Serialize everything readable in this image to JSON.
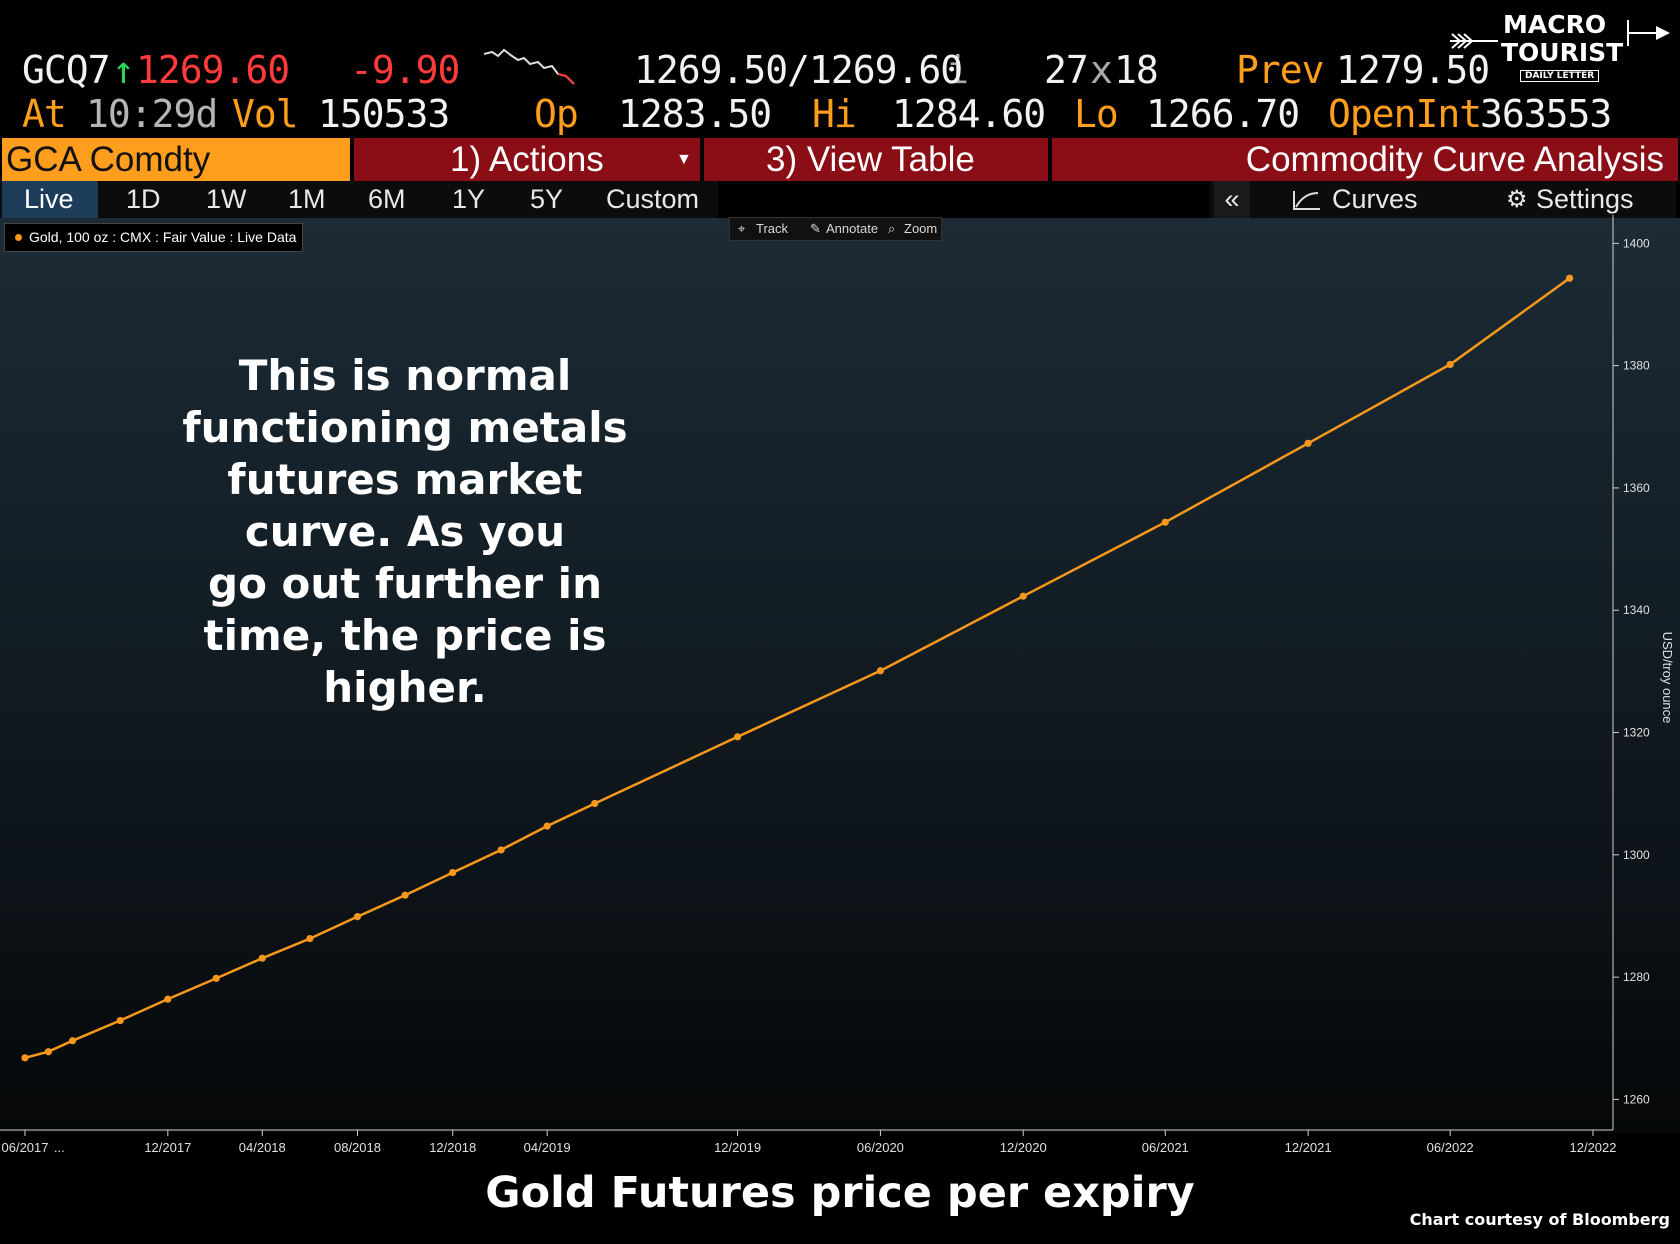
{
  "quote": {
    "ticker": "GCQ7",
    "last": "1269.60",
    "change": "-9.90",
    "bid_ask": "1269.50/1269.60",
    "bid_ask_suffix": "i",
    "size": "27",
    "size_x": "x",
    "size2": "18",
    "prev_label": "Prev",
    "prev": "1279.50",
    "at_label": "At",
    "time": "10:29d",
    "vol_label": "Vol",
    "vol": "150533",
    "op_label": "Op",
    "op": "1283.50",
    "hi_label": "Hi",
    "hi": "1284.60",
    "lo_label": "Lo",
    "lo": "1266.70",
    "oi_label": "OpenInt",
    "oi": "363553",
    "up_arrow": "↑"
  },
  "logo": {
    "line1": "MACRO",
    "line2": "TOURIST",
    "line3": "DAILY LETTER"
  },
  "toolbar": {
    "security": "GCA Comdty",
    "actions": "1) Actions",
    "view_table": "3) View Table",
    "title": "Commodity Curve Analysis"
  },
  "timeframes": [
    "Live",
    "1D",
    "1W",
    "1M",
    "6M",
    "1Y",
    "5Y",
    "Custom"
  ],
  "side_tools": {
    "collapse": "«",
    "curves": "Curves",
    "settings": "Settings"
  },
  "chart_tools": {
    "track": "Track",
    "annotate": "Annotate",
    "zoom": "Zoom"
  },
  "annotation": "This is normal\nfunctioning metals\nfutures market\ncurve.  As you\ngo out further in\ntime, the price is\nhigher.",
  "footer": {
    "title": "Gold Futures price per expiry",
    "credit": "Chart courtesy of Bloomberg"
  },
  "colors": {
    "line": "#f7981c",
    "header_red": "#8b0e16",
    "security_orange": "#ff9d1c",
    "selected_tab": "#1d3c5a"
  },
  "chart_data": {
    "type": "line",
    "legend": [
      "Gold, 100 oz : CMX : Fair Value : Live Data"
    ],
    "ylabel": "USD/troy ounce",
    "ylim": [
      1255,
      1403
    ],
    "yticks": [
      1260,
      1280,
      1300,
      1320,
      1340,
      1360,
      1380,
      1400
    ],
    "xlim": [
      "2017-06-01",
      "2022-12-01"
    ],
    "xticks": [
      {
        "label": "06/2017",
        "date": "2017-06-01"
      },
      {
        "label": "...",
        "date": "2017-07-15"
      },
      {
        "label": "12/2017",
        "date": "2017-12-01"
      },
      {
        "label": "04/2018",
        "date": "2018-04-01"
      },
      {
        "label": "08/2018",
        "date": "2018-08-01"
      },
      {
        "label": "12/2018",
        "date": "2018-12-01"
      },
      {
        "label": "04/2019",
        "date": "2019-04-01"
      },
      {
        "label": "12/2019",
        "date": "2019-12-01"
      },
      {
        "label": "06/2020",
        "date": "2020-06-01"
      },
      {
        "label": "12/2020",
        "date": "2020-12-01"
      },
      {
        "label": "06/2021",
        "date": "2021-06-01"
      },
      {
        "label": "12/2021",
        "date": "2021-12-01"
      },
      {
        "label": "06/2022",
        "date": "2022-06-01"
      },
      {
        "label": "12/2022",
        "date": "2022-12-01"
      }
    ],
    "series": [
      {
        "name": "Gold, 100 oz : CMX : Fair Value : Live Data",
        "points": [
          {
            "x": "2017-06-01",
            "y": 1266.8
          },
          {
            "x": "2017-07-01",
            "y": 1267.8
          },
          {
            "x": "2017-08-01",
            "y": 1269.6
          },
          {
            "x": "2017-10-01",
            "y": 1272.9
          },
          {
            "x": "2017-12-01",
            "y": 1276.4
          },
          {
            "x": "2018-02-01",
            "y": 1279.8
          },
          {
            "x": "2018-04-01",
            "y": 1283.1
          },
          {
            "x": "2018-06-01",
            "y": 1286.3
          },
          {
            "x": "2018-08-01",
            "y": 1289.9
          },
          {
            "x": "2018-10-01",
            "y": 1293.4
          },
          {
            "x": "2018-12-01",
            "y": 1297.1
          },
          {
            "x": "2019-02-01",
            "y": 1300.8
          },
          {
            "x": "2019-04-01",
            "y": 1304.7
          },
          {
            "x": "2019-06-01",
            "y": 1308.4
          },
          {
            "x": "2019-12-01",
            "y": 1319.3
          },
          {
            "x": "2020-06-01",
            "y": 1330.1
          },
          {
            "x": "2020-12-01",
            "y": 1342.3
          },
          {
            "x": "2021-06-01",
            "y": 1354.4
          },
          {
            "x": "2021-12-01",
            "y": 1367.3
          },
          {
            "x": "2022-06-01",
            "y": 1380.2
          },
          {
            "x": "2022-11-01",
            "y": 1394.3
          }
        ]
      }
    ]
  }
}
